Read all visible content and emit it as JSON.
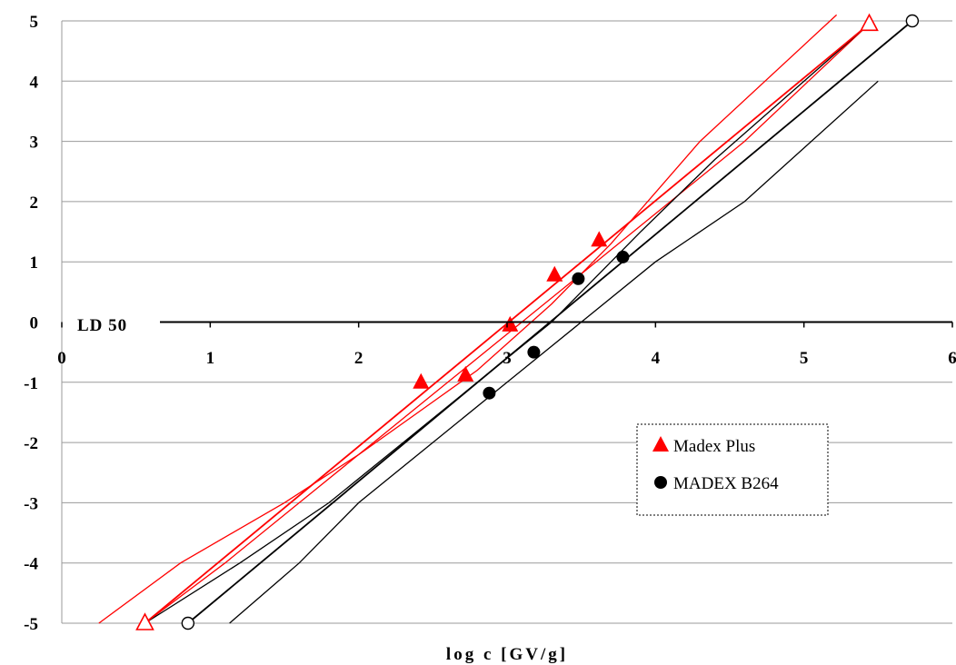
{
  "chart_data": {
    "type": "scatter",
    "xlabel": "log c [GV/g]",
    "xlim": [
      0,
      6
    ],
    "ylim": [
      -5,
      5
    ],
    "x_ticks": [
      "0",
      "1",
      "2",
      "3",
      "4",
      "5",
      "6"
    ],
    "y_ticks": [
      "5",
      "4",
      "3",
      "2",
      "1",
      "0",
      "-1",
      "-2",
      "-3",
      "-4",
      "-5"
    ],
    "annotation": "LD 50",
    "grid": "horizontal",
    "legend_position": "center-right",
    "series": [
      {
        "name": "Madex Plus",
        "color": "#ff0000",
        "marker": "filled-triangle",
        "points": [
          [
            2.42,
            -1.0
          ],
          [
            2.72,
            -0.88
          ],
          [
            3.02,
            -0.05
          ],
          [
            3.32,
            0.78
          ],
          [
            3.62,
            1.36
          ]
        ],
        "fit_endpoints": [
          [
            0.56,
            -5.0
          ],
          [
            5.44,
            4.95
          ]
        ],
        "confidence_band": [
          [
            [
              0.25,
              -5.0
            ],
            [
              0.8,
              -4.0
            ],
            [
              1.5,
              -3.0
            ],
            [
              2.0,
              -2.2
            ],
            [
              2.4,
              -1.5
            ],
            [
              2.8,
              -0.8
            ],
            [
              3.3,
              0.3
            ],
            [
              3.7,
              1.3
            ],
            [
              4.3,
              3.0
            ],
            [
              5.22,
              5.1
            ]
          ],
          [
            [
              0.56,
              -5.0
            ],
            [
              1.1,
              -4.0
            ],
            [
              1.6,
              -3.0
            ],
            [
              2.1,
              -2.0
            ],
            [
              2.6,
              -1.0
            ],
            [
              3.1,
              0.0
            ],
            [
              3.6,
              1.0
            ],
            [
              4.1,
              2.0
            ],
            [
              4.6,
              3.0
            ],
            [
              5.44,
              4.95
            ]
          ]
        ]
      },
      {
        "name": "MADEX B264",
        "color": "#000000",
        "marker": "filled-circle",
        "points": [
          [
            2.88,
            -1.18
          ],
          [
            3.18,
            -0.5
          ],
          [
            3.48,
            0.72
          ],
          [
            3.78,
            1.08
          ]
        ],
        "fit_endpoints": [
          [
            0.85,
            -5.0
          ],
          [
            5.73,
            5.0
          ]
        ],
        "confidence_band": [
          [
            [
              0.56,
              -5.0
            ],
            [
              1.2,
              -4.0
            ],
            [
              1.8,
              -3.0
            ],
            [
              2.3,
              -2.0
            ],
            [
              2.8,
              -1.0
            ],
            [
              3.3,
              0.0
            ],
            [
              3.9,
              1.5
            ],
            [
              4.4,
              2.7
            ],
            [
              5.44,
              4.95
            ]
          ],
          [
            [
              1.13,
              -5.0
            ],
            [
              1.6,
              -4.0
            ],
            [
              2.0,
              -3.0
            ],
            [
              2.5,
              -2.0
            ],
            [
              3.0,
              -1.0
            ],
            [
              3.5,
              0.0
            ],
            [
              4.0,
              1.0
            ],
            [
              4.6,
              2.0
            ],
            [
              5.5,
              4.0
            ]
          ]
        ]
      }
    ],
    "open_markers": [
      {
        "series": "Madex Plus",
        "marker": "open-triangle",
        "points": [
          [
            0.56,
            -5.0
          ],
          [
            5.44,
            4.95
          ]
        ]
      },
      {
        "series": "MADEX B264",
        "marker": "open-circle",
        "points": [
          [
            0.85,
            -5.0
          ],
          [
            5.73,
            5.0
          ]
        ]
      }
    ]
  }
}
